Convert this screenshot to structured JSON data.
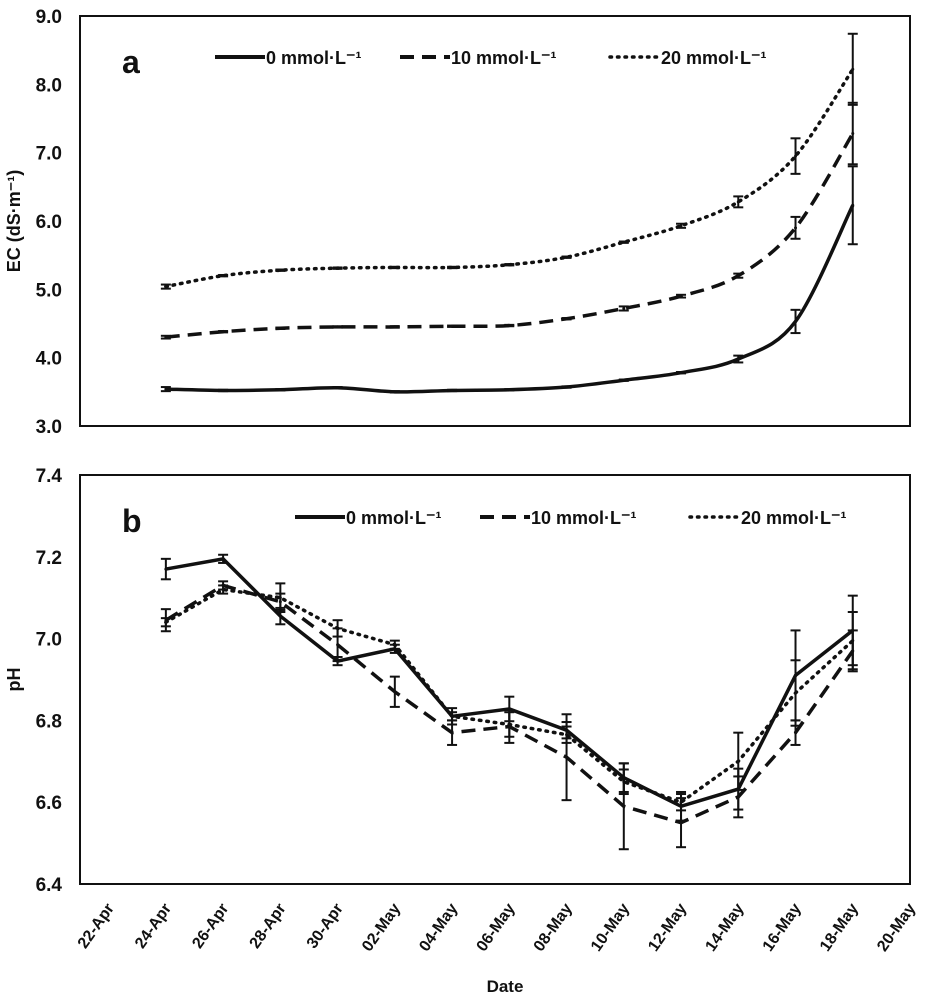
{
  "chart_data": [
    {
      "type": "line",
      "panel_label": "a",
      "ylabel": "EC (dS·m⁻¹)",
      "xlabel": "",
      "ylim": [
        3.0,
        9.0
      ],
      "yticks": [
        "3.0",
        "4.0",
        "5.0",
        "6.0",
        "7.0",
        "8.0",
        "9.0"
      ],
      "xlim": [
        "21-Apr",
        "20-May"
      ],
      "xticks": [],
      "smooth": true,
      "grid": false,
      "legend_position": "top",
      "x": [
        "24-Apr",
        "26-Apr",
        "28-Apr",
        "30-Apr",
        "02-May",
        "04-May",
        "06-May",
        "08-May",
        "10-May",
        "12-May",
        "14-May",
        "16-May",
        "18-May"
      ],
      "series": [
        {
          "name": "0 mmol·L⁻¹",
          "style": "solid",
          "values": [
            3.54,
            3.52,
            3.53,
            3.56,
            3.5,
            3.52,
            3.53,
            3.57,
            3.67,
            3.78,
            3.98,
            4.53,
            6.23
          ],
          "errors": [
            0.03,
            0.01,
            0.01,
            0.01,
            0.01,
            0.01,
            0.01,
            0.01,
            0.01,
            0.01,
            0.05,
            0.17,
            0.57
          ]
        },
        {
          "name": "10 mmol·L⁻¹",
          "style": "dashed",
          "values": [
            4.3,
            4.38,
            4.43,
            4.45,
            4.45,
            4.46,
            4.47,
            4.57,
            4.72,
            4.9,
            5.2,
            5.9,
            7.28
          ],
          "errors": [
            0.02,
            0.01,
            0.01,
            0.01,
            0.01,
            0.01,
            0.01,
            0.01,
            0.03,
            0.02,
            0.03,
            0.16,
            0.45
          ]
        },
        {
          "name": "20 mmol·L⁻¹",
          "style": "dotted",
          "values": [
            5.04,
            5.2,
            5.28,
            5.31,
            5.32,
            5.32,
            5.36,
            5.47,
            5.69,
            5.93,
            6.28,
            6.95,
            8.22
          ],
          "errors": [
            0.03,
            0.01,
            0.01,
            0.01,
            0.01,
            0.01,
            0.01,
            0.01,
            0.01,
            0.03,
            0.08,
            0.26,
            0.52
          ]
        }
      ]
    },
    {
      "type": "line",
      "panel_label": "b",
      "ylabel": "pH",
      "xlabel": "Date",
      "ylim": [
        6.4,
        7.4
      ],
      "yticks": [
        "6.4",
        "6.6",
        "6.8",
        "7.0",
        "7.2",
        "7.4"
      ],
      "xlim": [
        "21-Apr",
        "20-May"
      ],
      "xticks": [
        "22-Apr",
        "24-Apr",
        "26-Apr",
        "28-Apr",
        "30-Apr",
        "02-May",
        "04-May",
        "06-May",
        "08-May",
        "10-May",
        "12-May",
        "14-May",
        "16-May",
        "18-May",
        "20-May"
      ],
      "smooth": false,
      "grid": false,
      "legend_position": "top",
      "x": [
        "24-Apr",
        "26-Apr",
        "28-Apr",
        "30-Apr",
        "02-May",
        "04-May",
        "06-May",
        "08-May",
        "10-May",
        "12-May",
        "14-May",
        "16-May",
        "18-May"
      ],
      "series": [
        {
          "name": "0 mmol·L⁻¹",
          "style": "solid",
          "values": [
            7.17,
            7.195,
            7.055,
            6.945,
            6.975,
            6.81,
            6.828,
            6.776,
            6.66,
            6.59,
            6.632,
            6.91,
            7.02
          ],
          "errors": [
            0.025,
            0.01,
            0.02,
            0.01,
            0.01,
            0.02,
            0.03,
            0.02,
            0.035,
            0.035,
            0.05,
            0.11,
            0.085
          ]
        },
        {
          "name": "10 mmol·L⁻¹",
          "style": "dashed",
          "values": [
            7.045,
            7.13,
            7.09,
            6.985,
            6.87,
            6.77,
            6.785,
            6.71,
            6.59,
            6.55,
            6.613,
            6.77,
            6.97
          ],
          "errors": [
            0.027,
            0.01,
            0.02,
            0.04,
            0.037,
            0.03,
            0.04,
            0.105,
            0.105,
            0.06,
            0.05,
            0.03,
            0.05
          ]
        },
        {
          "name": "20 mmol·L⁻¹",
          "style": "dotted",
          "values": [
            7.04,
            7.12,
            7.1,
            7.025,
            6.985,
            6.81,
            6.79,
            6.765,
            6.65,
            6.6,
            6.7,
            6.867,
            6.995
          ],
          "errors": [
            0.01,
            0.01,
            0.035,
            0.02,
            0.01,
            0.01,
            0.03,
            0.02,
            0.03,
            0.02,
            0.07,
            0.08,
            0.07
          ]
        }
      ]
    }
  ]
}
